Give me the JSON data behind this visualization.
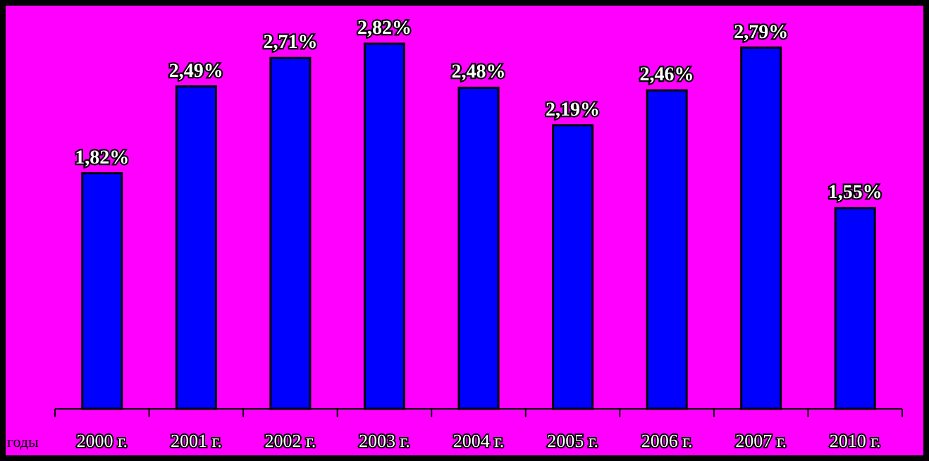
{
  "chart_data": {
    "type": "bar",
    "xlabel": "годы",
    "categories": [
      "2000 г.",
      "2001 г.",
      "2002 г.",
      "2003 г.",
      "2004 г.",
      "2005 г.",
      "2006 г.",
      "2007 г.",
      "2010 г."
    ],
    "values": [
      1.82,
      2.49,
      2.71,
      2.82,
      2.48,
      2.19,
      2.46,
      2.79,
      1.55
    ],
    "value_labels": [
      "1,82%",
      "2,49%",
      "2,71%",
      "2,82%",
      "2,48%",
      "2,19%",
      "2,46%",
      "2,79%",
      "1,55%"
    ],
    "color": "#0000ff"
  }
}
